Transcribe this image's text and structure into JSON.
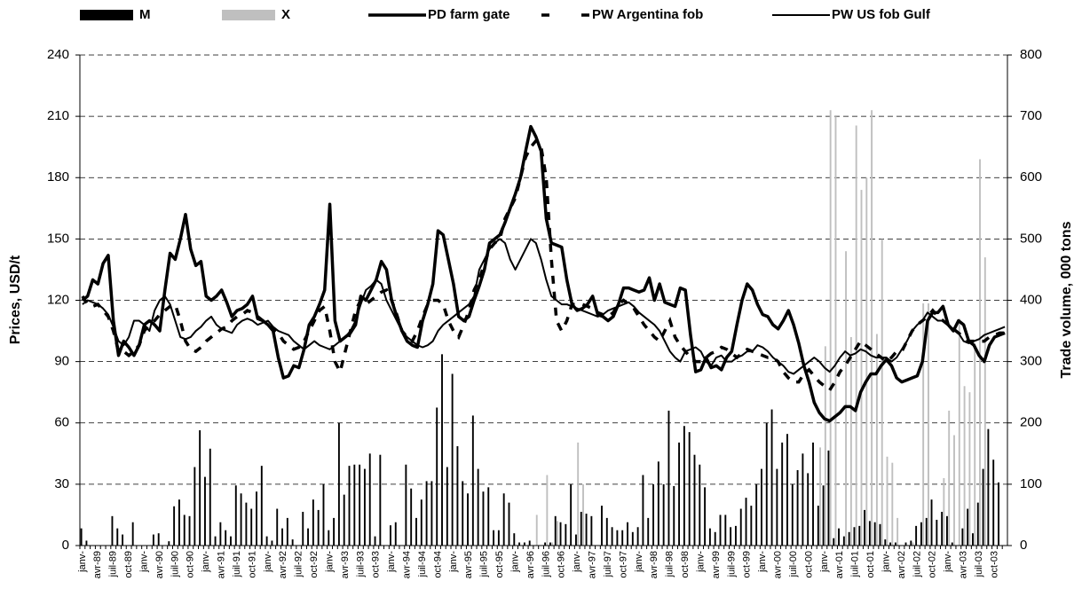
{
  "chart_data": {
    "type": "combo",
    "y_label": "Prices, USD/t",
    "y2_label": "Trade volume, 000 tons",
    "ylim": [
      0,
      240
    ],
    "yticks": [
      0,
      30,
      60,
      90,
      120,
      150,
      180,
      210,
      240
    ],
    "y2lim": [
      0,
      800
    ],
    "y2ticks": [
      0,
      100,
      200,
      300,
      400,
      500,
      600,
      700,
      800
    ],
    "grid": true,
    "categories": [
      "janv-",
      null,
      null,
      "avr-89",
      null,
      null,
      "juil-89",
      null,
      null,
      "oct-89",
      null,
      null,
      "janv-",
      null,
      null,
      "avr-90",
      null,
      null,
      "juil-90",
      null,
      null,
      "oct-90",
      null,
      null,
      "janv-",
      null,
      null,
      "avr-91",
      null,
      null,
      "juil-91",
      null,
      null,
      "oct-91",
      null,
      null,
      "janv-",
      null,
      null,
      "avr-92",
      null,
      null,
      "juil-92",
      null,
      null,
      "oct-92",
      null,
      null,
      "janv-",
      null,
      null,
      "avr-93",
      null,
      null,
      "juil-93",
      null,
      null,
      "oct-93",
      null,
      null,
      "janv-",
      null,
      null,
      "avr-94",
      null,
      null,
      "juil-94",
      null,
      null,
      "oct-94",
      null,
      null,
      "janv-",
      null,
      null,
      "avr-95",
      null,
      null,
      "juil-95",
      null,
      null,
      "oct-95",
      null,
      null,
      "janv-",
      null,
      null,
      "avr-96",
      null,
      null,
      "juil-96",
      null,
      null,
      "oct-96",
      null,
      null,
      "janv-",
      null,
      null,
      "avr-97",
      null,
      null,
      "juil-97",
      null,
      null,
      "oct-97",
      null,
      null,
      "janv-",
      null,
      null,
      "avr-98",
      null,
      null,
      "juil-98",
      null,
      null,
      "oct-98",
      null,
      null,
      "janv-",
      null,
      null,
      "avr-99",
      null,
      null,
      "juil-99",
      null,
      null,
      "oct-99",
      null,
      null,
      "janv-",
      null,
      null,
      "avr-00",
      null,
      null,
      "juil-00",
      null,
      null,
      "oct-00",
      null,
      null,
      "janv-",
      null,
      null,
      "avr-01",
      null,
      null,
      "juil-01",
      null,
      null,
      "oct-01",
      null,
      null,
      "janv-",
      null,
      null,
      "avr-02",
      null,
      null,
      "juil-02",
      null,
      null,
      "oct-02",
      null,
      null,
      "janv-",
      null,
      null,
      "avr-03",
      null,
      null,
      "juil-03",
      null,
      null,
      "oct-03",
      null,
      null
    ],
    "series": [
      {
        "name": "M",
        "type": "bar",
        "axis": "y2",
        "color": "#000000",
        "values": [
          28,
          8,
          0,
          0,
          0,
          0,
          48,
          28,
          18,
          0,
          38,
          0,
          0,
          0,
          18,
          20,
          0,
          7,
          64,
          75,
          50,
          48,
          128,
          188,
          112,
          158,
          15,
          38,
          25,
          15,
          98,
          85,
          70,
          60,
          88,
          130,
          15,
          8,
          60,
          28,
          45,
          10,
          0,
          55,
          28,
          75,
          58,
          100,
          25,
          45,
          200,
          83,
          130,
          132,
          132,
          125,
          150,
          15,
          148,
          0,
          33,
          38,
          0,
          132,
          93,
          45,
          75,
          105,
          105,
          225,
          312,
          128,
          280,
          162,
          105,
          85,
          212,
          125,
          88,
          95,
          25,
          25,
          85,
          70,
          20,
          5,
          5,
          8,
          0,
          0,
          5,
          5,
          48,
          38,
          35,
          100,
          18,
          55,
          52,
          48,
          0,
          65,
          45,
          30,
          25,
          25,
          38,
          22,
          30,
          115,
          45,
          100,
          137,
          100,
          220,
          97,
          168,
          195,
          185,
          148,
          132,
          95,
          28,
          22,
          50,
          50,
          30,
          32,
          60,
          78,
          65,
          100,
          125,
          200,
          222,
          125,
          168,
          182,
          100,
          123,
          150,
          118,
          168,
          65,
          98,
          155,
          12,
          28,
          15,
          22,
          30,
          32,
          58,
          40,
          38,
          35,
          10,
          5,
          5,
          0,
          5,
          8,
          32,
          38,
          45,
          75,
          42,
          55,
          48,
          5,
          0,
          28,
          60,
          20,
          70,
          125,
          190,
          140,
          103,
          0
        ]
      },
      {
        "name": "X",
        "type": "bar",
        "axis": "y2",
        "color": "#bfbfbf",
        "values": [
          0,
          0,
          0,
          0,
          0,
          0,
          0,
          0,
          0,
          0,
          0,
          0,
          0,
          0,
          0,
          0,
          0,
          0,
          0,
          0,
          0,
          0,
          0,
          0,
          0,
          0,
          0,
          0,
          0,
          0,
          0,
          0,
          0,
          0,
          0,
          0,
          0,
          0,
          0,
          0,
          0,
          0,
          0,
          0,
          0,
          0,
          0,
          0,
          0,
          0,
          0,
          0,
          0,
          0,
          0,
          0,
          0,
          0,
          0,
          0,
          0,
          0,
          0,
          0,
          0,
          0,
          0,
          0,
          0,
          0,
          0,
          0,
          0,
          0,
          0,
          0,
          0,
          0,
          0,
          0,
          0,
          0,
          0,
          0,
          0,
          0,
          0,
          0,
          50,
          0,
          115,
          5,
          40,
          0,
          0,
          0,
          168,
          100,
          0,
          0,
          0,
          0,
          0,
          0,
          0,
          0,
          0,
          0,
          0,
          0,
          0,
          0,
          0,
          0,
          0,
          0,
          0,
          0,
          0,
          0,
          0,
          0,
          0,
          0,
          0,
          0,
          0,
          0,
          0,
          0,
          0,
          0,
          0,
          0,
          0,
          0,
          0,
          0,
          0,
          0,
          0,
          0,
          0,
          160,
          325,
          710,
          700,
          0,
          480,
          340,
          685,
          580,
          600,
          710,
          345,
          500,
          145,
          135,
          45,
          0,
          0,
          5,
          0,
          395,
          395,
          0,
          0,
          110,
          220,
          180,
          370,
          260,
          250,
          330,
          630,
          470,
          0,
          0,
          0,
          0
        ]
      },
      {
        "name": "PD farm gate",
        "type": "line",
        "style": "thick",
        "color": "#000000",
        "values": [
          120,
          122,
          130,
          128,
          138,
          142,
          110,
          93,
          100,
          97,
          93,
          98,
          108,
          110,
          108,
          105,
          125,
          143,
          140,
          150,
          162,
          145,
          137,
          139,
          122,
          120,
          122,
          125,
          119,
          112,
          115,
          116,
          118,
          122,
          111,
          110,
          108,
          105,
          92,
          82,
          83,
          88,
          87,
          96,
          108,
          112,
          118,
          125,
          167,
          110,
          100,
          102,
          104,
          108,
          122,
          120,
          125,
          130,
          139,
          135,
          120,
          112,
          105,
          100,
          98,
          97,
          110,
          118,
          128,
          154,
          152,
          140,
          128,
          112,
          110,
          112,
          120,
          127,
          135,
          148,
          150,
          152,
          158,
          165,
          172,
          180,
          193,
          205,
          200,
          193,
          160,
          148,
          147,
          146,
          130,
          118,
          115,
          116,
          118,
          122,
          113,
          112,
          110,
          112,
          118,
          126,
          126,
          125,
          124,
          125,
          131,
          120,
          128,
          119,
          118,
          117,
          126,
          125,
          103,
          85,
          86,
          92,
          87,
          88,
          86,
          92,
          95,
          108,
          120,
          128,
          125,
          118,
          113,
          112,
          108,
          106,
          110,
          115,
          108,
          99,
          88,
          80,
          70,
          65,
          62,
          61,
          63,
          65,
          68,
          68,
          66,
          75,
          80,
          84,
          84,
          88,
          91,
          88,
          82,
          80,
          81,
          82,
          83,
          90,
          110,
          114,
          114,
          117,
          108,
          105,
          110,
          108,
          100,
          98,
          93,
          90,
          98,
          102,
          103,
          104
        ]
      },
      {
        "name": "PW Argentina fob",
        "type": "line",
        "style": "dashed",
        "color": "#000000",
        "values": [
          122,
          118,
          117,
          118,
          115,
          112,
          105,
          95,
          95,
          93,
          95,
          98,
          105,
          108,
          110,
          113,
          115,
          117,
          118,
          110,
          100,
          96,
          95,
          97,
          100,
          102,
          104,
          106,
          107,
          110,
          112,
          113,
          115,
          114,
          112,
          110,
          108,
          106,
          104,
          100,
          98,
          96,
          97,
          100,
          105,
          110,
          115,
          117,
          105,
          90,
          85,
          95,
          105,
          115,
          120,
          118,
          120,
          122,
          124,
          125,
          120,
          113,
          105,
          102,
          100,
          105,
          112,
          118,
          120,
          120,
          118,
          110,
          105,
          102,
          108,
          115,
          125,
          130,
          138,
          145,
          148,
          150,
          160,
          165,
          170,
          180,
          190,
          195,
          198,
          195,
          180,
          140,
          110,
          105,
          110,
          118,
          118,
          118,
          117,
          116,
          114,
          113,
          112,
          114,
          118,
          120,
          118,
          116,
          112,
          108,
          105,
          102,
          100,
          105,
          110,
          102,
          98,
          95,
          92,
          90,
          90,
          92,
          94,
          95,
          97,
          96,
          94,
          92,
          94,
          96,
          95,
          94,
          93,
          92,
          92,
          90,
          85,
          82,
          80,
          80,
          84,
          86,
          83,
          80,
          78,
          76,
          80,
          85,
          88,
          92,
          96,
          100,
          98,
          96,
          94,
          92,
          90,
          92,
          95,
          95,
          100,
          105,
          108,
          110,
          112,
          115,
          112,
          110,
          108,
          106,
          104,
          102,
          100,
          100,
          100,
          100,
          102,
          103,
          104,
          104
        ]
      },
      {
        "name": "PW US fob Gulf",
        "type": "line",
        "style": "thin",
        "color": "#000000",
        "values": [
          118,
          120,
          119,
          118,
          116,
          113,
          107,
          100,
          98,
          102,
          110,
          110,
          108,
          105,
          115,
          120,
          122,
          118,
          110,
          102,
          101,
          102,
          105,
          107,
          110,
          112,
          108,
          106,
          105,
          104,
          108,
          110,
          111,
          110,
          108,
          109,
          110,
          107,
          105,
          104,
          103,
          100,
          98,
          96,
          98,
          100,
          98,
          97,
          96,
          98,
          100,
          102,
          105,
          110,
          118,
          125,
          127,
          130,
          128,
          120,
          115,
          110,
          105,
          102,
          100,
          98,
          97,
          98,
          100,
          105,
          108,
          110,
          112,
          114,
          116,
          118,
          122,
          135,
          140,
          145,
          148,
          150,
          148,
          140,
          135,
          140,
          145,
          150,
          148,
          140,
          130,
          122,
          120,
          118,
          118,
          117,
          116,
          115,
          114,
          113,
          112,
          113,
          115,
          116,
          117,
          118,
          119,
          117,
          114,
          112,
          110,
          108,
          105,
          100,
          95,
          92,
          90,
          95,
          96,
          97,
          95,
          90,
          88,
          92,
          93,
          90,
          90,
          92,
          93,
          95,
          95,
          98,
          97,
          95,
          92,
          90,
          88,
          85,
          84,
          86,
          88,
          90,
          92,
          90,
          87,
          85,
          88,
          92,
          95,
          93,
          94,
          96,
          95,
          93,
          92,
          92,
          92,
          90,
          92,
          96,
          100,
          105,
          108,
          110,
          114,
          112,
          110,
          110,
          108,
          106,
          104,
          100,
          99,
          100,
          101,
          103,
          104,
          105,
          106,
          107
        ]
      }
    ]
  }
}
